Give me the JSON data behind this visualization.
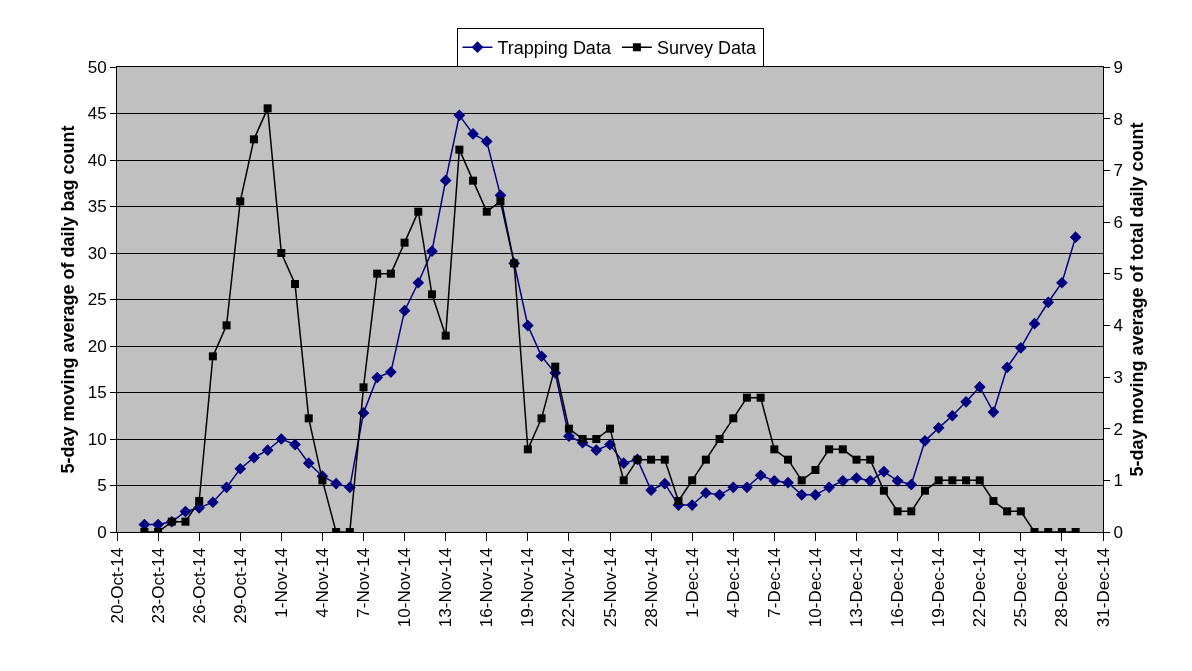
{
  "chart_data": {
    "type": "line",
    "ylabel": "5-day moving average of daily bag count",
    "y2label": "5-day moving average of total daily count",
    "x": [
      "--10-22",
      "--10-23",
      "--10-24",
      "--10-25",
      "--10-26",
      "--10-27",
      "--10-28",
      "--10-29",
      "--10-30",
      "--10-31",
      "--11-01",
      "--11-02",
      "--11-03",
      "--11-04",
      "--11-05",
      "--11-06",
      "--11-07",
      "--11-08",
      "--11-09",
      "--11-10",
      "--11-11",
      "--11-12",
      "--11-13",
      "--11-14",
      "--11-15",
      "--11-16",
      "--11-17",
      "--11-18",
      "--11-19",
      "--11-20",
      "--11-21",
      "--11-22",
      "--11-23",
      "--11-24",
      "--11-25",
      "--11-26",
      "--11-27",
      "--11-28",
      "--11-29",
      "--11-30",
      "--12-01",
      "--12-02",
      "--12-03",
      "--12-04",
      "--12-05",
      "--12-06",
      "--12-07",
      "--12-08",
      "--12-09",
      "--12-10",
      "--12-11",
      "--12-12",
      "--12-13",
      "--12-14",
      "--12-15",
      "--12-16",
      "--12-17",
      "--12-18",
      "--12-19",
      "--12-20",
      "--12-21",
      "--12-22",
      "--12-23",
      "--12-24",
      "--12-25",
      "--12-26",
      "--12-27",
      "--12-28",
      "--12-29"
    ],
    "series": [
      {
        "name": "Trapping Data",
        "color": "#000080",
        "marker": "diamond",
        "values": [
          0.8,
          0.8,
          1.1,
          2.2,
          2.6,
          3.2,
          4.8,
          6.8,
          8.0,
          8.8,
          10.0,
          9.4,
          7.4,
          6.0,
          5.2,
          4.8,
          12.8,
          16.6,
          17.2,
          23.8,
          26.8,
          30.2,
          37.8,
          44.8,
          42.8,
          42.0,
          36.2,
          28.9,
          22.2,
          18.9,
          17.1,
          10.3,
          9.6,
          8.8,
          9.4,
          7.4,
          7.8,
          4.5,
          5.2,
          2.9,
          2.9,
          4.2,
          4.0,
          4.8,
          4.8,
          6.1,
          5.5,
          5.3,
          4.0,
          4.0,
          4.8,
          5.5,
          5.8,
          5.5,
          6.5,
          5.5,
          5.1,
          9.8,
          11.2,
          12.5,
          14.0,
          15.6,
          12.9,
          17.7,
          19.8,
          22.4,
          24.7,
          26.8,
          31.7
        ]
      },
      {
        "name": "Survey Data",
        "color": "#000000",
        "marker": "square",
        "axis": "y2",
        "values": [
          0,
          0,
          0.2,
          0.2,
          0.6,
          3.4,
          4.0,
          6.4,
          7.6,
          8.2,
          5.4,
          4.8,
          2.2,
          1.0,
          0,
          0,
          2.8,
          5.0,
          5.0,
          5.6,
          6.2,
          4.6,
          3.8,
          7.4,
          6.8,
          6.2,
          6.4,
          5.2,
          1.6,
          2.2,
          3.2,
          2.0,
          1.8,
          1.8,
          2.0,
          1.0,
          1.4,
          1.4,
          1.4,
          0.6,
          1.0,
          1.4,
          1.8,
          2.2,
          2.6,
          2.6,
          1.6,
          1.4,
          1.0,
          1.2,
          1.6,
          1.6,
          1.4,
          1.4,
          0.8,
          0.4,
          0.4,
          0.8,
          1.0,
          1.0,
          1.0,
          1.0,
          0.6,
          0.4,
          0.4,
          0,
          0,
          0,
          0
        ]
      }
    ],
    "xlim": [
      "--10-20",
      "--12-31"
    ],
    "xticks": [
      {
        "value": "--10-20",
        "label": "20-Oct-14"
      },
      {
        "value": "--10-23",
        "label": "23-Oct-14"
      },
      {
        "value": "--10-26",
        "label": "26-Oct-14"
      },
      {
        "value": "--10-29",
        "label": "29-Oct-14"
      },
      {
        "value": "--11-01",
        "label": "1-Nov-14"
      },
      {
        "value": "--11-04",
        "label": "4-Nov-14"
      },
      {
        "value": "--11-07",
        "label": "7-Nov-14"
      },
      {
        "value": "--11-10",
        "label": "10-Nov-14"
      },
      {
        "value": "--11-13",
        "label": "13-Nov-14"
      },
      {
        "value": "--11-16",
        "label": "16-Nov-14"
      },
      {
        "value": "--11-19",
        "label": "19-Nov-14"
      },
      {
        "value": "--11-22",
        "label": "22-Nov-14"
      },
      {
        "value": "--11-25",
        "label": "25-Nov-14"
      },
      {
        "value": "--11-28",
        "label": "28-Nov-14"
      },
      {
        "value": "--12-01",
        "label": "1-Dec-14"
      },
      {
        "value": "--12-04",
        "label": "4-Dec-14"
      },
      {
        "value": "--12-07",
        "label": "7-Dec-14"
      },
      {
        "value": "--12-10",
        "label": "10-Dec-14"
      },
      {
        "value": "--12-13",
        "label": "13-Dec-14"
      },
      {
        "value": "--12-16",
        "label": "16-Dec-14"
      },
      {
        "value": "--12-19",
        "label": "19-Dec-14"
      },
      {
        "value": "--12-22",
        "label": "22-Dec-14"
      },
      {
        "value": "--12-25",
        "label": "25-Dec-14"
      },
      {
        "value": "--12-28",
        "label": "28-Dec-14"
      },
      {
        "value": "--12-31",
        "label": "31-Dec-14"
      }
    ],
    "ylim": [
      0,
      50
    ],
    "yticks": [
      0,
      5,
      10,
      15,
      20,
      25,
      30,
      35,
      40,
      45,
      50
    ],
    "y2lim": [
      0,
      9
    ],
    "y2ticks": [
      0,
      1,
      2,
      3,
      4,
      5,
      6,
      7,
      8,
      9
    ],
    "grid": "y",
    "legend": "top",
    "line_style": "solid"
  }
}
